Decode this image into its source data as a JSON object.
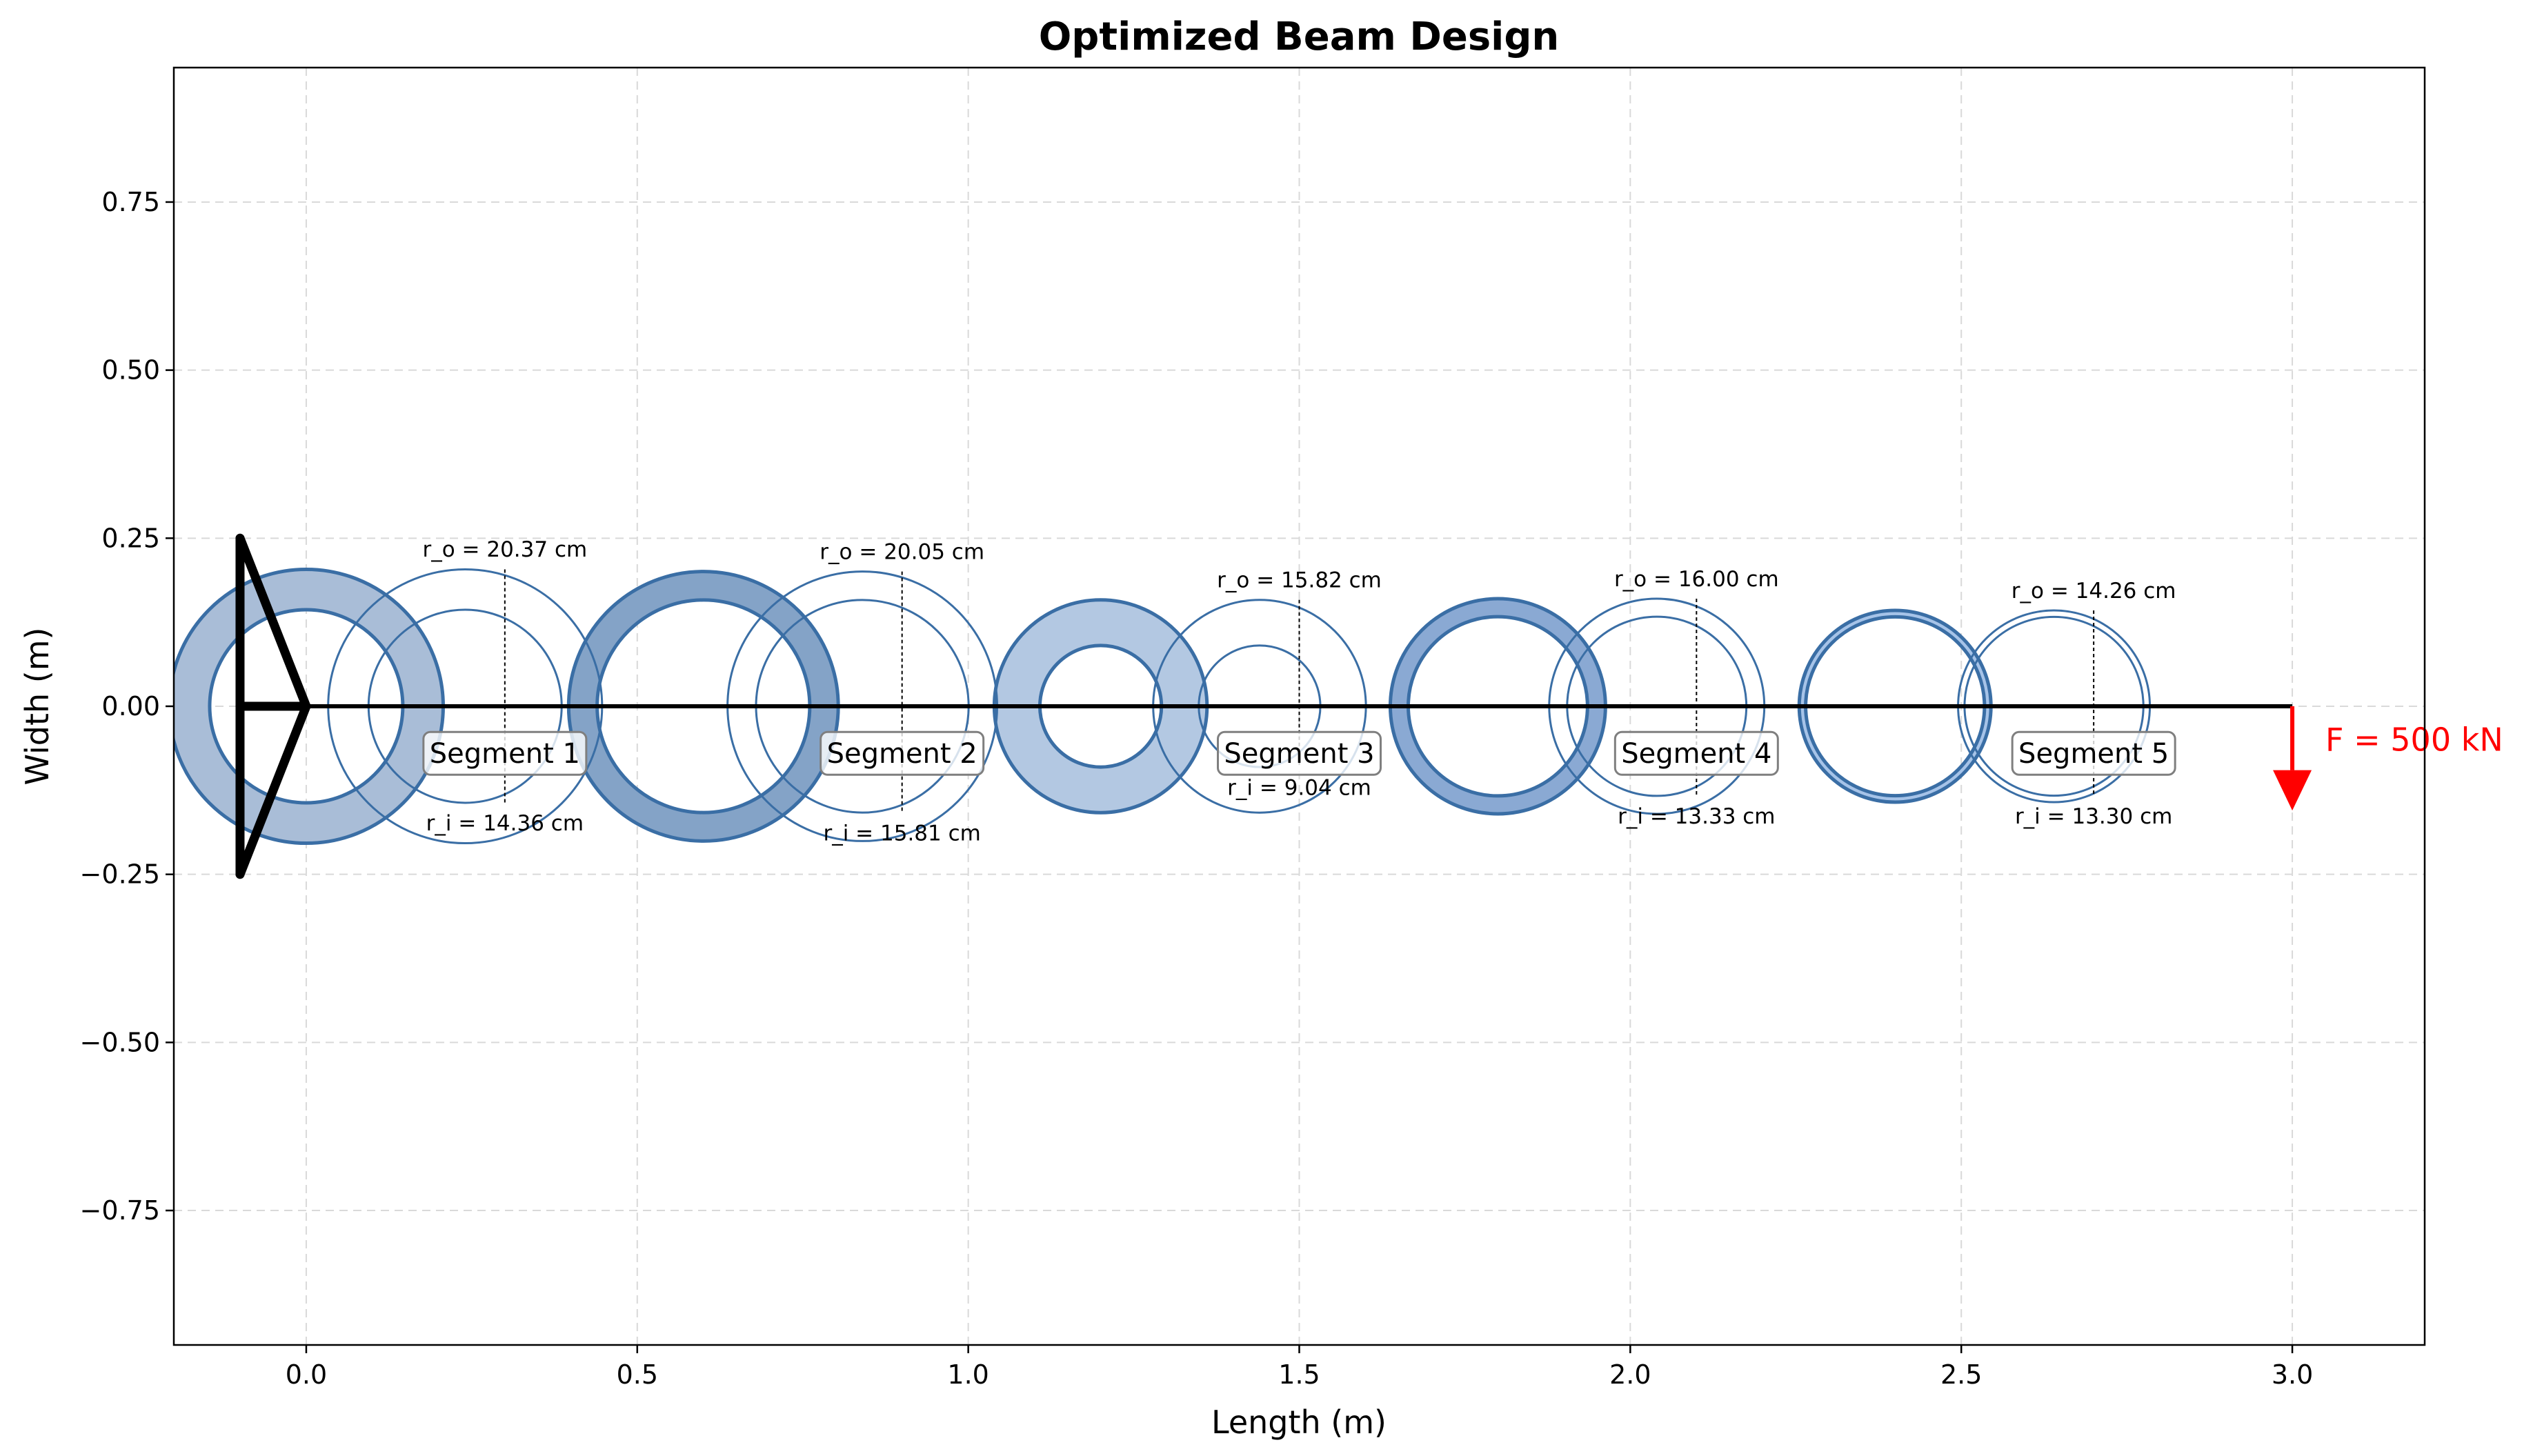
{
  "chart_data": {
    "type": "diagram",
    "title": "Optimized Beam Design",
    "xlabel": "Length (m)",
    "ylabel": "Width (m)",
    "xlim": [
      -0.2,
      3.2
    ],
    "ylim": [
      -0.95,
      0.95
    ],
    "xticks": [
      0.0,
      0.5,
      1.0,
      1.5,
      2.0,
      2.5,
      3.0
    ],
    "xtick_labels": [
      "0.0",
      "0.5",
      "1.0",
      "1.5",
      "2.0",
      "2.5",
      "3.0"
    ],
    "yticks": [
      0.75,
      0.5,
      0.25,
      0.0,
      -0.25,
      -0.5,
      -0.75
    ],
    "ytick_labels": [
      "0.75",
      "0.50",
      "0.25",
      "0.00",
      "−0.25",
      "−0.50",
      "−0.75"
    ],
    "grid": true,
    "beam_length": 3.0,
    "segments": [
      {
        "label": "Segment 1",
        "x_start": 0.0,
        "x_end": 0.6,
        "r_o": 0.2037,
        "r_i": 0.1436,
        "r_o_label": "r_o = 20.37 cm",
        "r_i_label": "r_i = 14.36 cm",
        "fill_color": "#a9bdd7"
      },
      {
        "label": "Segment 2",
        "x_start": 0.6,
        "x_end": 1.2,
        "r_o": 0.2005,
        "r_i": 0.1581,
        "r_o_label": "r_o = 20.05 cm",
        "r_i_label": "r_i = 15.81 cm",
        "fill_color": "#84a3c7"
      },
      {
        "label": "Segment 3",
        "x_start": 1.2,
        "x_end": 1.8,
        "r_o": 0.1582,
        "r_i": 0.0904,
        "r_o_label": "r_o = 15.82 cm",
        "r_i_label": "r_i = 9.04 cm",
        "fill_color": "#b3c8e2"
      },
      {
        "label": "Segment 4",
        "x_start": 1.8,
        "x_end": 2.4,
        "r_o": 0.16,
        "r_i": 0.1333,
        "r_o_label": "r_o = 16.00 cm",
        "r_i_label": "r_i = 13.33 cm",
        "fill_color": "#8aa9d3"
      },
      {
        "label": "Segment 5",
        "x_start": 2.4,
        "x_end": 3.0,
        "r_o": 0.1426,
        "r_i": 0.133,
        "r_o_label": "r_o = 14.26 cm",
        "r_i_label": "r_i = 13.30 cm",
        "fill_color": "#a6c3e8"
      }
    ],
    "load": {
      "x": 3.0,
      "label": "F = 500 kN",
      "color": "#ff0000"
    },
    "colors": {
      "outline": "#3a6ea5",
      "beam": "#000000",
      "grid": "#d9d9d9"
    }
  }
}
